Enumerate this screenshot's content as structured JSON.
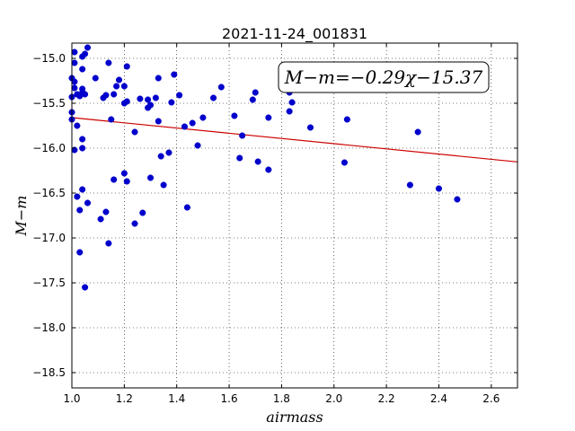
{
  "chart_data": {
    "type": "scatter",
    "title": "2021-11-24_001831",
    "xlabel": "airmass",
    "ylabel": "M−m",
    "xlim": [
      1.0,
      2.7
    ],
    "ylim": [
      -18.67,
      -14.83
    ],
    "y_inverted": true,
    "grid": true,
    "grid_style": "dotted",
    "xticks": [
      1.0,
      1.2,
      1.4,
      1.6,
      1.8,
      2.0,
      2.2,
      2.4,
      2.6
    ],
    "xtick_labels": [
      "1.0",
      "1.2",
      "1.4",
      "1.6",
      "1.8",
      "2.0",
      "2.2",
      "2.4",
      "2.6"
    ],
    "yticks": [
      -15.0,
      -15.5,
      -16.0,
      -16.5,
      -17.0,
      -17.5,
      -18.0,
      -18.5
    ],
    "ytick_labels": [
      "−15.0",
      "−15.5",
      "−16.0",
      "−16.5",
      "−17.0",
      "−17.5",
      "−18.0",
      "−18.5"
    ],
    "point_color": "#0000cc",
    "fit_color": "#cc0000",
    "fit": {
      "slope": -0.29,
      "intercept": -15.37
    },
    "annotation": "M−m=−0.29χ−15.37",
    "annotation_location": "top-right",
    "points": [
      [
        1.01,
        -14.93
      ],
      [
        1.01,
        -15.05
      ],
      [
        1.0,
        -15.22
      ],
      [
        1.01,
        -15.26
      ],
      [
        1.01,
        -15.33
      ],
      [
        1.0,
        -15.43
      ],
      [
        1.02,
        -15.4
      ],
      [
        1.0,
        -15.6
      ],
      [
        1.0,
        -15.68
      ],
      [
        1.02,
        -15.75
      ],
      [
        1.01,
        -16.02
      ],
      [
        1.04,
        -14.98
      ],
      [
        1.05,
        -14.95
      ],
      [
        1.06,
        -14.88
      ],
      [
        1.04,
        -15.12
      ],
      [
        1.04,
        -15.34
      ],
      [
        1.04,
        -15.38
      ],
      [
        1.03,
        -15.42
      ],
      [
        1.05,
        -15.4
      ],
      [
        1.04,
        -15.9
      ],
      [
        1.04,
        -16.0
      ],
      [
        1.02,
        -16.54
      ],
      [
        1.04,
        -16.46
      ],
      [
        1.06,
        -16.61
      ],
      [
        1.03,
        -16.69
      ],
      [
        1.03,
        -17.16
      ],
      [
        1.05,
        -17.55
      ],
      [
        1.09,
        -15.22
      ],
      [
        1.12,
        -15.44
      ],
      [
        1.13,
        -15.41
      ],
      [
        1.14,
        -15.05
      ],
      [
        1.15,
        -15.68
      ],
      [
        1.16,
        -15.4
      ],
      [
        1.17,
        -15.31
      ],
      [
        1.18,
        -15.24
      ],
      [
        1.2,
        -15.31
      ],
      [
        1.21,
        -15.09
      ],
      [
        1.2,
        -15.5
      ],
      [
        1.21,
        -15.48
      ],
      [
        1.16,
        -16.35
      ],
      [
        1.2,
        -16.28
      ],
      [
        1.21,
        -16.37
      ],
      [
        1.11,
        -16.79
      ],
      [
        1.13,
        -16.71
      ],
      [
        1.14,
        -17.06
      ],
      [
        1.24,
        -15.82
      ],
      [
        1.24,
        -16.84
      ],
      [
        1.26,
        -15.45
      ],
      [
        1.27,
        -16.72
      ],
      [
        1.29,
        -15.46
      ],
      [
        1.29,
        -15.55
      ],
      [
        1.3,
        -15.52
      ],
      [
        1.3,
        -16.33
      ],
      [
        1.32,
        -15.44
      ],
      [
        1.33,
        -15.22
      ],
      [
        1.33,
        -15.7
      ],
      [
        1.34,
        -16.09
      ],
      [
        1.35,
        -16.41
      ],
      [
        1.37,
        -16.05
      ],
      [
        1.38,
        -15.49
      ],
      [
        1.39,
        -15.18
      ],
      [
        1.41,
        -15.41
      ],
      [
        1.43,
        -15.76
      ],
      [
        1.44,
        -16.66
      ],
      [
        1.46,
        -15.72
      ],
      [
        1.48,
        -15.97
      ],
      [
        1.5,
        -15.66
      ],
      [
        1.54,
        -15.44
      ],
      [
        1.57,
        -15.32
      ],
      [
        1.62,
        -15.64
      ],
      [
        1.64,
        -16.11
      ],
      [
        1.65,
        -15.86
      ],
      [
        1.69,
        -15.46
      ],
      [
        1.7,
        -15.38
      ],
      [
        1.71,
        -16.15
      ],
      [
        1.75,
        -15.66
      ],
      [
        1.75,
        -16.24
      ],
      [
        1.83,
        -15.38
      ],
      [
        1.83,
        -15.59
      ],
      [
        1.84,
        -15.49
      ],
      [
        1.91,
        -15.77
      ],
      [
        2.04,
        -16.16
      ],
      [
        2.05,
        -15.68
      ],
      [
        2.29,
        -16.41
      ],
      [
        2.32,
        -15.82
      ],
      [
        2.4,
        -16.45
      ],
      [
        2.47,
        -16.57
      ]
    ]
  }
}
